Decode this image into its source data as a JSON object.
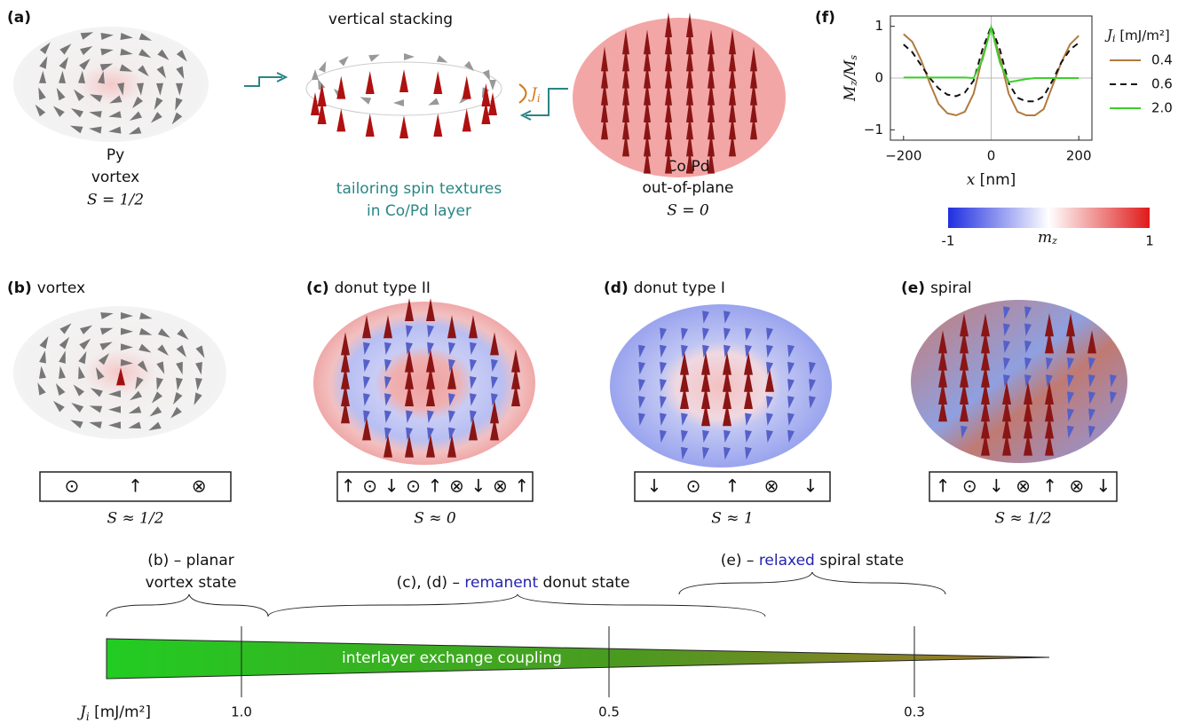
{
  "panel_a": {
    "label": "(a)",
    "py": {
      "name": "Py",
      "state": "vortex",
      "s": "S = 1/2"
    },
    "stacking": "vertical stacking",
    "coupling_symbol": "J",
    "coupling_sub": "i",
    "caption": [
      "tailoring spin textures",
      "in Co/Pd layer"
    ],
    "copd": {
      "name": "Co/Pd",
      "state": "out-of-plane",
      "s": "S = 0"
    }
  },
  "panel_f_label": "(f)",
  "colorbar": {
    "label": "m",
    "label_sub": "z",
    "range": [
      -1,
      1
    ],
    "colors": [
      "#1f2ee0",
      "#ffffff",
      "#e01a1a"
    ]
  },
  "panels": [
    {
      "label": "(b)",
      "title": "vortex",
      "symbols": [
        "⊙",
        "↑",
        "⊗"
      ],
      "s": "S ≈ 1/2"
    },
    {
      "label": "(c)",
      "title": "donut type II",
      "symbols": [
        "↑",
        "⊙",
        "↓",
        "⊙",
        "↑",
        "⊗",
        "↓",
        "⊗",
        "↑"
      ],
      "s": "S ≈ 0"
    },
    {
      "label": "(d)",
      "title": "donut type I",
      "symbols": [
        "↓",
        "⊙",
        "↑",
        "⊗",
        "↓"
      ],
      "s": "S ≈ 1"
    },
    {
      "label": "(e)",
      "title": "spiral",
      "symbols": [
        "↑",
        "⊙",
        "↓",
        "⊗",
        "↑",
        "⊗",
        "↓"
      ],
      "s": "S ≈ 1/2"
    }
  ],
  "scale": {
    "ranges": [
      {
        "lines": [
          [
            "(b) – planar"
          ],
          [
            "vortex state"
          ]
        ]
      },
      {
        "lines": [
          [
            "(c), (d) – ",
            "remanent",
            " donut state"
          ]
        ]
      },
      {
        "lines": [
          [
            "(e) – ",
            "relaxed",
            " spiral state"
          ]
        ]
      }
    ],
    "bar_label": "interlayer exchange coupling",
    "axis_symbol": "J",
    "axis_sub": "i",
    "axis_unit": " [mJ/m²]",
    "ticks": [
      {
        "value": 1,
        "label": "1.0"
      },
      0.5,
      0.3
    ]
  },
  "chart_data": {
    "type": "line",
    "xlabel": "x",
    "xunit": " [nm]",
    "ylabel": [
      "M",
      "z",
      "/M",
      "s"
    ],
    "legend_title": [
      "J",
      "i",
      " [mJ/m²]"
    ],
    "x": [
      -200,
      -180,
      -160,
      -140,
      -120,
      -100,
      -80,
      -60,
      -40,
      -20,
      0,
      20,
      40,
      60,
      80,
      100,
      120,
      140,
      160,
      180,
      200
    ],
    "series": [
      {
        "name": "0.4",
        "color": "#b07a40",
        "line_style": "solid",
        "values": [
          0.85,
          0.7,
          0.35,
          -0.1,
          -0.5,
          -0.68,
          -0.72,
          -0.65,
          -0.3,
          0.4,
          0.98,
          0.4,
          -0.3,
          -0.65,
          -0.72,
          -0.72,
          -0.6,
          -0.15,
          0.3,
          0.65,
          0.82
        ]
      },
      {
        "name": "0.6",
        "color": "#111111",
        "line_style": "dashed",
        "values": [
          0.65,
          0.5,
          0.25,
          0,
          -0.2,
          -0.32,
          -0.35,
          -0.28,
          -0.05,
          0.55,
          1,
          0.55,
          -0.1,
          -0.38,
          -0.45,
          -0.45,
          -0.35,
          -0.05,
          0.3,
          0.55,
          0.68
        ]
      },
      {
        "name": "2.0",
        "color": "#3ccf2a",
        "line_style": "solid",
        "values": [
          0.01,
          0.01,
          0.01,
          0.01,
          0.01,
          0.01,
          0.01,
          0.01,
          0,
          0.35,
          0.98,
          0.3,
          -0.08,
          -0.05,
          -0.02,
          0,
          0,
          0,
          0,
          0,
          0
        ]
      }
    ],
    "xlim": [
      -230,
      230
    ],
    "ylim": [
      -1.2,
      1.2
    ],
    "xticks": [
      {
        "value": -200,
        "label": "−200"
      },
      0,
      200
    ],
    "yticks": [
      {
        "value": -1,
        "label": "−1"
      },
      0,
      1
    ],
    "grid": true,
    "legend": "right"
  }
}
